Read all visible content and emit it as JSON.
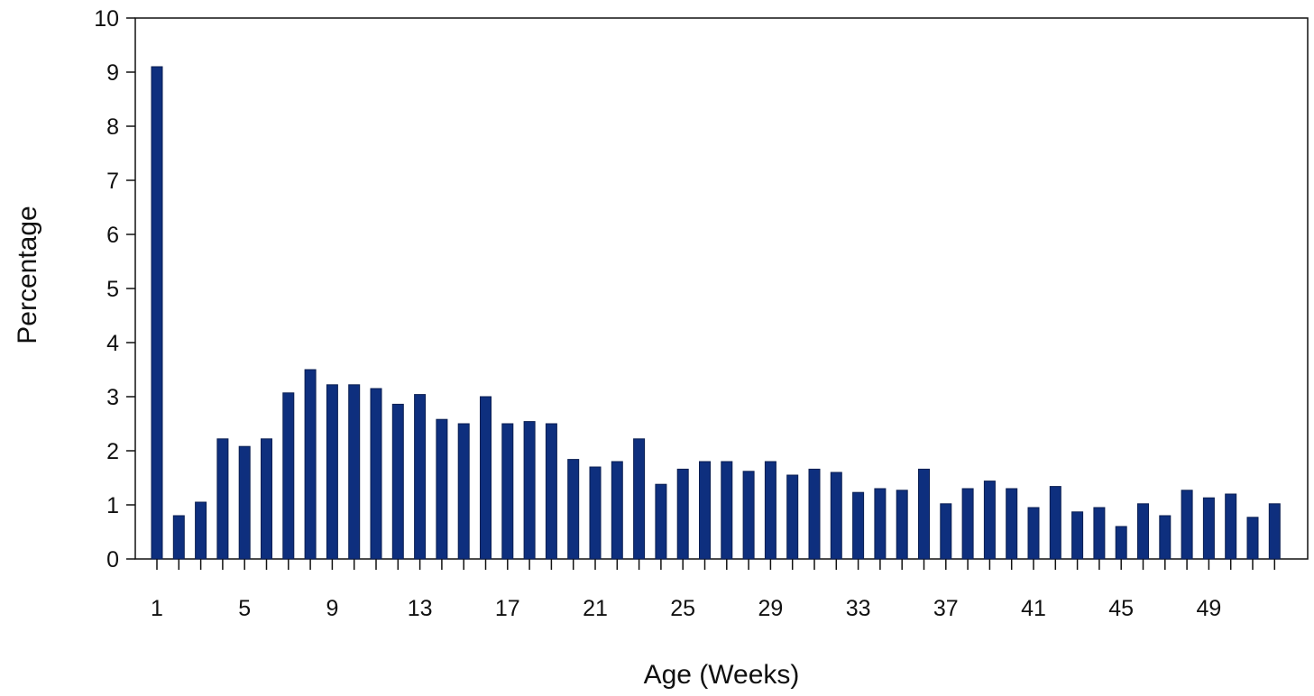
{
  "chart_data": {
    "type": "bar",
    "title": "",
    "xlabel": "Age (Weeks)",
    "ylabel": "Percentage",
    "ylim": [
      0,
      10
    ],
    "yticks": [
      "0",
      "1",
      "2",
      "3",
      "4",
      "5",
      "6",
      "7",
      "8",
      "9",
      "10"
    ],
    "xtick_labels": [
      "1",
      "5",
      "9",
      "13",
      "17",
      "21",
      "25",
      "29",
      "33",
      "37",
      "41",
      "45",
      "49"
    ],
    "categories": [
      1,
      2,
      3,
      4,
      5,
      6,
      7,
      8,
      9,
      10,
      11,
      12,
      13,
      14,
      15,
      16,
      17,
      18,
      19,
      20,
      21,
      22,
      23,
      24,
      25,
      26,
      27,
      28,
      29,
      30,
      31,
      32,
      33,
      34,
      35,
      36,
      37,
      38,
      39,
      40,
      41,
      42,
      43,
      44,
      45,
      46,
      47,
      48,
      49,
      50,
      51,
      52
    ],
    "values": [
      9.1,
      0.8,
      1.05,
      2.22,
      2.08,
      2.22,
      3.07,
      3.5,
      3.22,
      3.22,
      3.15,
      2.86,
      3.04,
      2.58,
      2.5,
      3.0,
      2.5,
      2.54,
      2.5,
      1.84,
      1.7,
      1.8,
      2.22,
      1.38,
      1.66,
      1.8,
      1.8,
      1.62,
      1.8,
      1.55,
      1.66,
      1.6,
      1.23,
      1.3,
      1.27,
      1.66,
      1.02,
      1.3,
      1.44,
      1.3,
      0.95,
      1.34,
      0.87,
      0.95,
      0.6,
      1.02,
      0.8,
      1.27,
      1.13,
      1.2,
      0.77,
      1.02
    ],
    "colors": {
      "bar": "#0e2f7e",
      "bar_stroke": "#0a1e52",
      "axis": "#111111"
    },
    "grid": false
  }
}
